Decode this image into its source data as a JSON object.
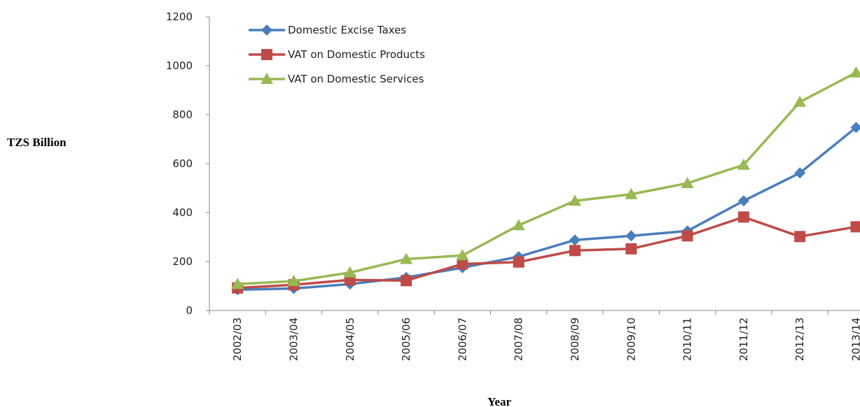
{
  "chart_data": {
    "type": "line",
    "y_label": "TZS Billion",
    "x_label": "Year",
    "categories": [
      "2002/03",
      "2003/04",
      "2004/05",
      "2005/06",
      "2006/07",
      "2007/08",
      "2008/09",
      "2009/10",
      "2010/11",
      "2011/12",
      "2012/13",
      "2013/14"
    ],
    "series": [
      {
        "name": "Domestic Excise Taxes",
        "color": "#4a7ebb",
        "marker": "diamond",
        "values": [
          85,
          90,
          108,
          135,
          175,
          220,
          288,
          305,
          325,
          448,
          562,
          748
        ]
      },
      {
        "name": "VAT on Domestic Products",
        "color": "#be4b48",
        "marker": "square",
        "values": [
          92,
          105,
          125,
          122,
          190,
          198,
          245,
          252,
          305,
          382,
          302,
          342
        ]
      },
      {
        "name": "VAT on Domestic Services",
        "color": "#98b954",
        "marker": "triangle",
        "values": [
          108,
          120,
          155,
          210,
          225,
          348,
          448,
          475,
          520,
          595,
          852,
          972
        ]
      }
    ],
    "ylim": [
      0,
      1200
    ],
    "yticks": [
      0,
      200,
      400,
      600,
      800,
      1000,
      1200
    ],
    "legend": "upper-left",
    "grid": false
  }
}
